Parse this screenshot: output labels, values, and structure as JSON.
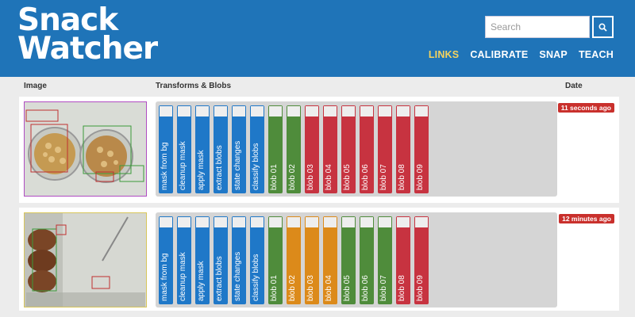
{
  "header": {
    "logo_line1": "Snack",
    "logo_line2": "Watcher",
    "search_placeholder": "Search",
    "search_icon": "search-icon",
    "nav": [
      {
        "label": "LINKS",
        "active": true
      },
      {
        "label": "CALIBRATE",
        "active": false
      },
      {
        "label": "SNAP",
        "active": false
      },
      {
        "label": "TEACH",
        "active": false
      }
    ],
    "colors": {
      "brand": "#1f74b8",
      "active_nav": "#f4d35e"
    }
  },
  "columns": {
    "image": "Image",
    "transforms": "Transforms & Blobs",
    "date": "Date"
  },
  "rows": [
    {
      "date": "11 seconds ago",
      "transforms": [
        {
          "label": "mask from bg",
          "color": "blue"
        },
        {
          "label": "cleanup mask",
          "color": "blue"
        },
        {
          "label": "apply mask",
          "color": "blue"
        },
        {
          "label": "extract blobs",
          "color": "blue"
        },
        {
          "label": "state changes",
          "color": "blue"
        },
        {
          "label": "classify blobs",
          "color": "blue"
        },
        {
          "label": "blob 01",
          "color": "green"
        },
        {
          "label": "blob 02",
          "color": "green"
        },
        {
          "label": "blob 03",
          "color": "red"
        },
        {
          "label": "blob 04",
          "color": "red"
        },
        {
          "label": "blob 05",
          "color": "red"
        },
        {
          "label": "blob 06",
          "color": "red"
        },
        {
          "label": "blob 07",
          "color": "red"
        },
        {
          "label": "blob 08",
          "color": "red"
        },
        {
          "label": "blob 09",
          "color": "red"
        }
      ]
    },
    {
      "date": "12 minutes ago",
      "transforms": [
        {
          "label": "mask from bg",
          "color": "blue"
        },
        {
          "label": "cleanup mask",
          "color": "blue"
        },
        {
          "label": "apply mask",
          "color": "blue"
        },
        {
          "label": "extract blobs",
          "color": "blue"
        },
        {
          "label": "state changes",
          "color": "blue"
        },
        {
          "label": "classify blobs",
          "color": "blue"
        },
        {
          "label": "blob 01",
          "color": "green"
        },
        {
          "label": "blob 02",
          "color": "orange"
        },
        {
          "label": "blob 03",
          "color": "orange"
        },
        {
          "label": "blob 04",
          "color": "orange"
        },
        {
          "label": "blob 05",
          "color": "green"
        },
        {
          "label": "blob 06",
          "color": "green"
        },
        {
          "label": "blob 07",
          "color": "green"
        },
        {
          "label": "blob 08",
          "color": "red"
        },
        {
          "label": "blob 09",
          "color": "red"
        }
      ]
    }
  ]
}
